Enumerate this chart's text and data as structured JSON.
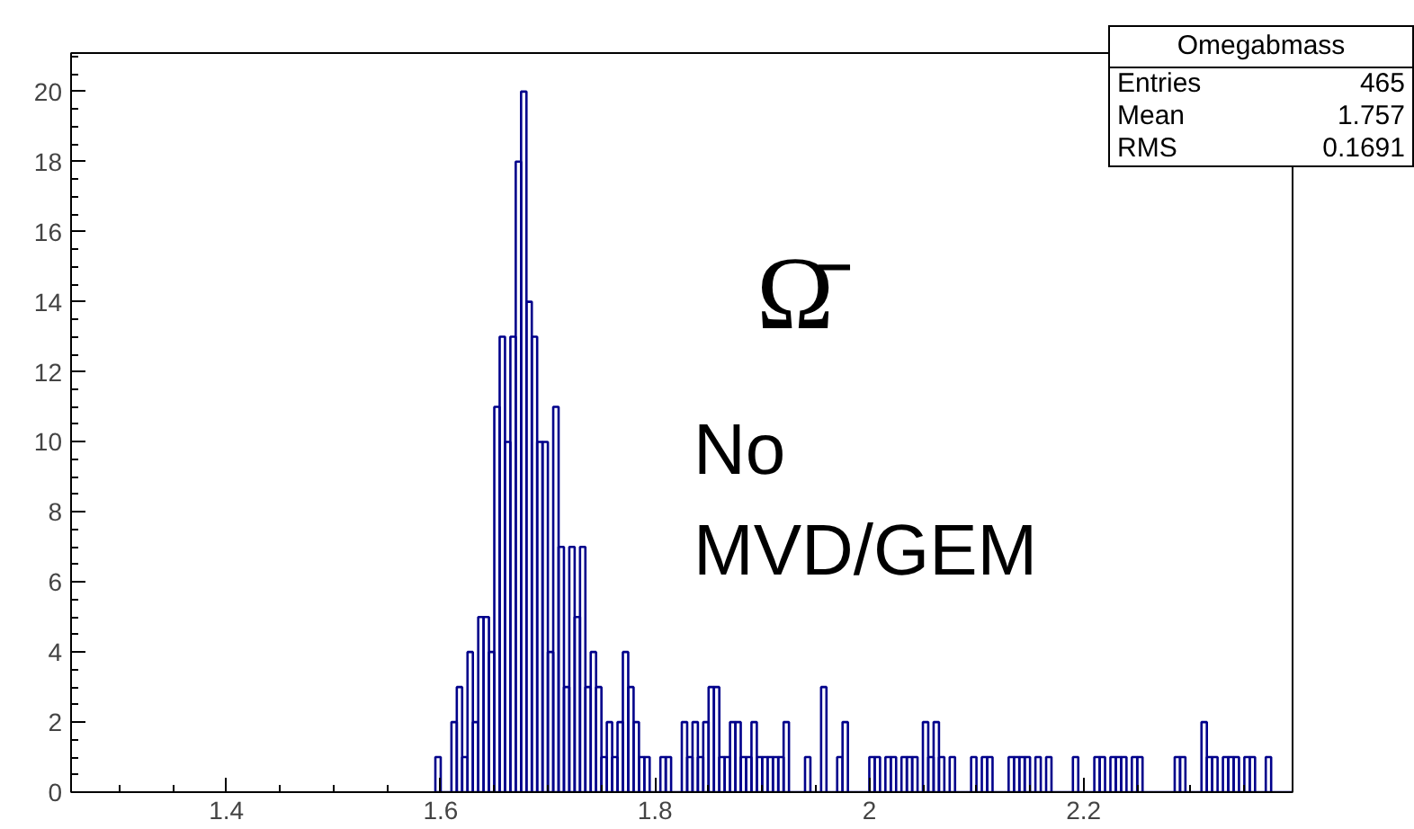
{
  "chart_data": {
    "type": "histogram",
    "bins": [
      1.595,
      1.6,
      1.605,
      1.61,
      1.615,
      1.62,
      1.625,
      1.63,
      1.635,
      1.64,
      1.645,
      1.65,
      1.655,
      1.66,
      1.665,
      1.67,
      1.675,
      1.68,
      1.685,
      1.69,
      1.695,
      1.7,
      1.705,
      1.71,
      1.715,
      1.72,
      1.725,
      1.73,
      1.735,
      1.74,
      1.745,
      1.75,
      1.755,
      1.76,
      1.765,
      1.77,
      1.775,
      1.78,
      1.785,
      1.79,
      1.795,
      1.8,
      1.805,
      1.81,
      1.815,
      1.82,
      1.825,
      1.83,
      1.835,
      1.84,
      1.845,
      1.85,
      1.855,
      1.86,
      1.865,
      1.87,
      1.875,
      1.88,
      1.885,
      1.89,
      1.895,
      1.9,
      1.905,
      1.91,
      1.915,
      1.92,
      1.925,
      1.93,
      1.935,
      1.94,
      1.945,
      1.95,
      1.955,
      1.96,
      1.965,
      1.97,
      1.975,
      1.98,
      1.985,
      1.99,
      1.995,
      2.0,
      2.005,
      2.01,
      2.015,
      2.02,
      2.025,
      2.03,
      2.035,
      2.04,
      2.045,
      2.05,
      2.055,
      2.06,
      2.065,
      2.07,
      2.075,
      2.08,
      2.085,
      2.09,
      2.095,
      2.1,
      2.105,
      2.11,
      2.115,
      2.12,
      2.125,
      2.13,
      2.135,
      2.14,
      2.145,
      2.15,
      2.155,
      2.16,
      2.165,
      2.17,
      2.175,
      2.18,
      2.185,
      2.19,
      2.195,
      2.2,
      2.205,
      2.21,
      2.215,
      2.22,
      2.225,
      2.23,
      2.235,
      2.24,
      2.245,
      2.25,
      2.255,
      2.26,
      2.265,
      2.27,
      2.275,
      2.28,
      2.285,
      2.29,
      2.295,
      2.3,
      2.305,
      2.31,
      2.315,
      2.32,
      2.325,
      2.33,
      2.335,
      2.34,
      2.345,
      2.35,
      2.355,
      2.36,
      2.365,
      2.37,
      2.375,
      2.38,
      2.385,
      2.39,
      2.395
    ],
    "values": [
      1,
      0,
      0,
      2,
      3,
      1,
      4,
      2,
      5,
      5,
      4,
      11,
      13,
      10,
      13,
      18,
      20,
      14,
      13,
      10,
      10,
      4,
      11,
      7,
      3,
      7,
      5,
      7,
      3,
      4,
      3,
      1,
      2,
      1,
      2,
      4,
      3,
      2,
      1,
      1,
      0,
      0,
      1,
      1,
      0,
      0,
      2,
      1,
      2,
      1,
      2,
      3,
      3,
      1,
      1,
      2,
      2,
      1,
      1,
      2,
      1,
      1,
      1,
      1,
      1,
      2,
      0,
      0,
      0,
      1,
      0,
      0,
      3,
      0,
      0,
      1,
      2,
      0,
      0,
      0,
      0,
      1,
      1,
      0,
      1,
      1,
      0,
      1,
      1,
      1,
      0,
      2,
      1,
      2,
      1,
      0,
      1,
      0,
      0,
      0,
      1,
      0,
      1,
      1,
      0,
      0,
      0,
      1,
      1,
      1,
      1,
      0,
      1,
      0,
      1,
      0,
      0,
      0,
      0,
      1,
      0,
      0,
      0,
      1,
      1,
      0,
      1,
      1,
      1,
      0,
      1,
      1,
      0,
      0,
      0,
      0,
      0,
      0,
      1,
      1,
      0,
      0,
      0,
      2,
      1,
      1,
      0,
      1,
      1,
      1,
      0,
      1,
      1,
      0,
      0,
      1,
      0,
      0,
      0,
      0
    ],
    "color": "#00008b",
    "xlim": [
      1.255,
      2.395
    ],
    "xticks": [
      1.4,
      1.6,
      1.8,
      2,
      2.2
    ],
    "ylim": [
      0,
      21.1
    ],
    "yticks": [
      0,
      2,
      4,
      6,
      8,
      10,
      12,
      14,
      16,
      18,
      20
    ],
    "grid": false,
    "annotations": [
      "Ω̄",
      "No",
      "MVD/GEM",
      "Omegabmass",
      "Entries",
      "465",
      "Mean",
      "1.757",
      "RMS",
      "0.1691"
    ]
  }
}
